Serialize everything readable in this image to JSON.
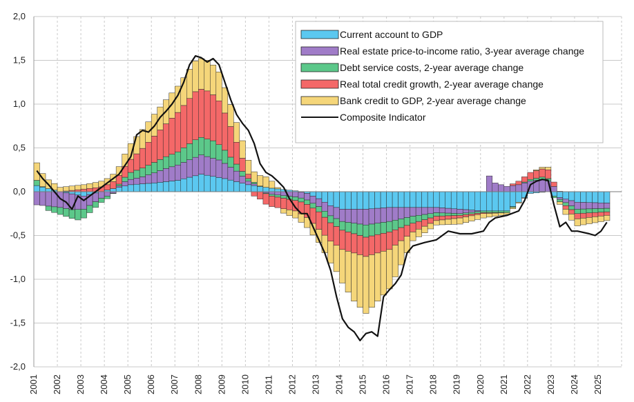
{
  "chart_data": {
    "type": "bar",
    "stacked": true,
    "x_start": 2001,
    "periods_per_year": 4,
    "x_ticks": [
      "2001",
      "2002",
      "2003",
      "2004",
      "2005",
      "2006",
      "2007",
      "2008",
      "2009",
      "2010",
      "2011",
      "2012",
      "2013",
      "2014",
      "2015",
      "2016",
      "2017",
      "2018",
      "2019",
      "2020",
      "2021",
      "2022",
      "2023",
      "2024",
      "2025"
    ],
    "y_ticks": [
      "2,0",
      "1,5",
      "1,0",
      "0,5",
      "0,0",
      "-0,5",
      "-1,0",
      "-1,5",
      "-2,0"
    ],
    "ylim": [
      -2.0,
      2.0
    ],
    "grid": true,
    "legend_position": "top-right",
    "colors": {
      "current_account": "#5bc8f0",
      "real_estate": "#a07cc8",
      "debt_service": "#5cc88a",
      "credit_growth": "#f46868",
      "bank_credit": "#f5d67a",
      "composite": "#111111",
      "grid": "#c8c8c8"
    },
    "series": [
      {
        "key": "current_account",
        "name": "Current account to GDP",
        "anchors": [
          [
            2001.0,
            0.07
          ],
          [
            2002.0,
            0.0
          ],
          [
            2003.0,
            -0.05
          ],
          [
            2004.0,
            0.02
          ],
          [
            2005.0,
            0.08
          ],
          [
            2006.0,
            0.1
          ],
          [
            2007.0,
            0.13
          ],
          [
            2008.0,
            0.2
          ],
          [
            2009.0,
            0.15
          ],
          [
            2010.0,
            0.08
          ],
          [
            2011.0,
            0.04
          ],
          [
            2012.0,
            0.01
          ],
          [
            2012.5,
            -0.02
          ],
          [
            2013.0,
            -0.08
          ],
          [
            2013.5,
            -0.16
          ],
          [
            2014.0,
            -0.2
          ],
          [
            2015.0,
            -0.2
          ],
          [
            2016.0,
            -0.18
          ],
          [
            2017.0,
            -0.18
          ],
          [
            2018.0,
            -0.18
          ],
          [
            2019.0,
            -0.2
          ],
          [
            2020.0,
            -0.22
          ],
          [
            2021.0,
            -0.22
          ],
          [
            2021.5,
            -0.12
          ],
          [
            2022.0,
            -0.02
          ],
          [
            2022.75,
            0.0
          ],
          [
            2023.0,
            -0.05
          ],
          [
            2024.0,
            -0.12
          ],
          [
            2025.25,
            -0.13
          ]
        ]
      },
      {
        "key": "real_estate",
        "name": "Real estate price-to-income ratio, 3-year average change",
        "anchors": [
          [
            2001.0,
            -0.15
          ],
          [
            2002.0,
            -0.18
          ],
          [
            2002.5,
            -0.18
          ],
          [
            2003.0,
            -0.15
          ],
          [
            2004.0,
            -0.05
          ],
          [
            2004.75,
            0.05
          ],
          [
            2005.5,
            0.08
          ],
          [
            2006.5,
            0.15
          ],
          [
            2007.5,
            0.2
          ],
          [
            2008.0,
            0.22
          ],
          [
            2008.75,
            0.2
          ],
          [
            2009.5,
            0.12
          ],
          [
            2010.0,
            0.04
          ],
          [
            2010.5,
            0.0
          ],
          [
            2011.0,
            -0.03
          ],
          [
            2012.0,
            -0.06
          ],
          [
            2013.0,
            -0.09
          ],
          [
            2014.0,
            -0.14
          ],
          [
            2015.0,
            -0.18
          ],
          [
            2016.0,
            -0.16
          ],
          [
            2017.0,
            -0.1
          ],
          [
            2018.0,
            -0.06
          ],
          [
            2019.0,
            -0.05
          ],
          [
            2020.0,
            0.0
          ],
          [
            2020.25,
            0.18
          ],
          [
            2020.5,
            0.1
          ],
          [
            2021.0,
            0.06
          ],
          [
            2021.5,
            0.08
          ],
          [
            2022.0,
            0.12
          ],
          [
            2022.5,
            0.14
          ],
          [
            2022.75,
            0.12
          ],
          [
            2023.0,
            0.06
          ],
          [
            2023.25,
            -0.02
          ],
          [
            2024.0,
            -0.08
          ],
          [
            2025.25,
            -0.06
          ]
        ]
      },
      {
        "key": "debt_service",
        "name": "Debt service costs, 2-year average change",
        "anchors": [
          [
            2001.0,
            0.06
          ],
          [
            2001.5,
            -0.05
          ],
          [
            2002.0,
            -0.08
          ],
          [
            2002.5,
            -0.1
          ],
          [
            2002.75,
            -0.12
          ],
          [
            2003.0,
            -0.1
          ],
          [
            2004.0,
            -0.03
          ],
          [
            2004.5,
            0.02
          ],
          [
            2005.0,
            0.08
          ],
          [
            2006.0,
            0.12
          ],
          [
            2007.0,
            0.15
          ],
          [
            2007.75,
            0.2
          ],
          [
            2008.5,
            0.2
          ],
          [
            2009.0,
            0.15
          ],
          [
            2009.5,
            0.08
          ],
          [
            2010.0,
            0.03
          ],
          [
            2011.0,
            -0.02
          ],
          [
            2012.0,
            -0.04
          ],
          [
            2013.0,
            -0.06
          ],
          [
            2014.0,
            -0.1
          ],
          [
            2015.0,
            -0.14
          ],
          [
            2016.0,
            -0.12
          ],
          [
            2017.0,
            -0.08
          ],
          [
            2018.0,
            -0.04
          ],
          [
            2019.0,
            -0.02
          ],
          [
            2020.0,
            -0.02
          ],
          [
            2021.0,
            -0.02
          ],
          [
            2022.0,
            0.02
          ],
          [
            2022.75,
            0.03
          ],
          [
            2023.0,
            -0.02
          ],
          [
            2024.0,
            -0.05
          ],
          [
            2025.25,
            -0.04
          ]
        ]
      },
      {
        "key": "credit_growth",
        "name": "Real total credit growth, 2-year average change",
        "anchors": [
          [
            2001.0,
            0.0
          ],
          [
            2002.0,
            0.0
          ],
          [
            2003.0,
            0.03
          ],
          [
            2004.0,
            0.06
          ],
          [
            2004.5,
            0.1
          ],
          [
            2005.0,
            0.15
          ],
          [
            2006.0,
            0.3
          ],
          [
            2007.0,
            0.45
          ],
          [
            2007.75,
            0.55
          ],
          [
            2008.25,
            0.55
          ],
          [
            2008.75,
            0.5
          ],
          [
            2009.25,
            0.35
          ],
          [
            2009.75,
            0.15
          ],
          [
            2010.25,
            -0.05
          ],
          [
            2010.75,
            -0.12
          ],
          [
            2011.5,
            -0.12
          ],
          [
            2012.0,
            -0.12
          ],
          [
            2012.5,
            -0.15
          ],
          [
            2013.0,
            -0.2
          ],
          [
            2014.0,
            -0.22
          ],
          [
            2015.0,
            -0.22
          ],
          [
            2016.0,
            -0.2
          ],
          [
            2017.0,
            -0.1
          ],
          [
            2018.0,
            -0.05
          ],
          [
            2019.0,
            -0.03
          ],
          [
            2020.0,
            -0.01
          ],
          [
            2021.0,
            0.0
          ],
          [
            2022.0,
            0.08
          ],
          [
            2022.75,
            0.1
          ],
          [
            2023.0,
            0.05
          ],
          [
            2023.5,
            -0.04
          ],
          [
            2024.0,
            -0.06
          ],
          [
            2025.25,
            -0.04
          ]
        ]
      },
      {
        "key": "bank_credit",
        "name": "Bank credit to GDP, 2-year average change",
        "anchors": [
          [
            2001.0,
            0.2
          ],
          [
            2001.5,
            0.1
          ],
          [
            2002.0,
            0.05
          ],
          [
            2003.0,
            0.05
          ],
          [
            2004.0,
            0.07
          ],
          [
            2004.5,
            0.1
          ],
          [
            2005.0,
            0.18
          ],
          [
            2006.0,
            0.25
          ],
          [
            2007.0,
            0.3
          ],
          [
            2007.75,
            0.35
          ],
          [
            2008.25,
            0.35
          ],
          [
            2008.75,
            0.33
          ],
          [
            2009.25,
            0.25
          ],
          [
            2009.75,
            0.2
          ],
          [
            2010.25,
            0.12
          ],
          [
            2010.75,
            0.12
          ],
          [
            2011.0,
            0.08
          ],
          [
            2011.5,
            -0.05
          ],
          [
            2012.0,
            -0.08
          ],
          [
            2013.0,
            -0.15
          ],
          [
            2013.75,
            -0.3
          ],
          [
            2014.5,
            -0.55
          ],
          [
            2015.0,
            -0.65
          ],
          [
            2015.5,
            -0.55
          ],
          [
            2016.0,
            -0.45
          ],
          [
            2017.0,
            -0.1
          ],
          [
            2018.0,
            -0.05
          ],
          [
            2019.0,
            -0.07
          ],
          [
            2020.0,
            -0.05
          ],
          [
            2021.0,
            -0.02
          ],
          [
            2022.0,
            0.0
          ],
          [
            2022.75,
            0.03
          ],
          [
            2023.0,
            0.0
          ],
          [
            2023.5,
            -0.06
          ],
          [
            2024.0,
            -0.08
          ],
          [
            2025.25,
            -0.06
          ]
        ]
      },
      {
        "key": "composite",
        "name": "Composite Indicator",
        "type": "line",
        "points": [
          [
            2001.0,
            0.24
          ],
          [
            2001.25,
            0.15
          ],
          [
            2001.5,
            0.08
          ],
          [
            2001.75,
            0.0
          ],
          [
            2002.0,
            -0.08
          ],
          [
            2002.25,
            -0.12
          ],
          [
            2002.5,
            -0.2
          ],
          [
            2002.75,
            -0.05
          ],
          [
            2003.0,
            -0.1
          ],
          [
            2003.25,
            -0.05
          ],
          [
            2003.5,
            0.0
          ],
          [
            2003.75,
            0.05
          ],
          [
            2004.0,
            0.1
          ],
          [
            2004.5,
            0.2
          ],
          [
            2005.0,
            0.4
          ],
          [
            2005.25,
            0.65
          ],
          [
            2005.5,
            0.7
          ],
          [
            2005.75,
            0.68
          ],
          [
            2006.0,
            0.75
          ],
          [
            2006.25,
            0.85
          ],
          [
            2006.5,
            0.92
          ],
          [
            2006.75,
            1.0
          ],
          [
            2007.0,
            1.1
          ],
          [
            2007.25,
            1.25
          ],
          [
            2007.5,
            1.45
          ],
          [
            2007.75,
            1.55
          ],
          [
            2008.0,
            1.53
          ],
          [
            2008.25,
            1.48
          ],
          [
            2008.5,
            1.52
          ],
          [
            2008.75,
            1.45
          ],
          [
            2009.0,
            1.25
          ],
          [
            2009.25,
            1.05
          ],
          [
            2009.5,
            0.88
          ],
          [
            2009.75,
            0.78
          ],
          [
            2010.0,
            0.7
          ],
          [
            2010.25,
            0.55
          ],
          [
            2010.5,
            0.32
          ],
          [
            2010.75,
            0.22
          ],
          [
            2011.0,
            0.18
          ],
          [
            2011.25,
            0.12
          ],
          [
            2011.5,
            0.05
          ],
          [
            2011.75,
            -0.08
          ],
          [
            2012.0,
            -0.18
          ],
          [
            2012.25,
            -0.25
          ],
          [
            2012.5,
            -0.25
          ],
          [
            2012.75,
            -0.4
          ],
          [
            2013.0,
            -0.55
          ],
          [
            2013.25,
            -0.7
          ],
          [
            2013.5,
            -0.9
          ],
          [
            2013.75,
            -1.2
          ],
          [
            2014.0,
            -1.45
          ],
          [
            2014.25,
            -1.55
          ],
          [
            2014.5,
            -1.6
          ],
          [
            2014.75,
            -1.7
          ],
          [
            2015.0,
            -1.62
          ],
          [
            2015.25,
            -1.6
          ],
          [
            2015.5,
            -1.65
          ],
          [
            2015.75,
            -1.2
          ],
          [
            2016.0,
            -1.12
          ],
          [
            2016.25,
            -1.05
          ],
          [
            2016.5,
            -0.95
          ],
          [
            2016.75,
            -0.7
          ],
          [
            2017.0,
            -0.62
          ],
          [
            2017.5,
            -0.58
          ],
          [
            2018.0,
            -0.55
          ],
          [
            2018.25,
            -0.5
          ],
          [
            2018.5,
            -0.45
          ],
          [
            2019.0,
            -0.48
          ],
          [
            2019.5,
            -0.48
          ],
          [
            2020.0,
            -0.45
          ],
          [
            2020.25,
            -0.35
          ],
          [
            2020.5,
            -0.3
          ],
          [
            2021.0,
            -0.27
          ],
          [
            2021.5,
            -0.22
          ],
          [
            2021.75,
            -0.1
          ],
          [
            2022.0,
            0.08
          ],
          [
            2022.25,
            0.12
          ],
          [
            2022.5,
            0.14
          ],
          [
            2022.75,
            0.13
          ],
          [
            2023.0,
            -0.15
          ],
          [
            2023.25,
            -0.4
          ],
          [
            2023.5,
            -0.35
          ],
          [
            2023.75,
            -0.45
          ],
          [
            2024.0,
            -0.45
          ],
          [
            2024.5,
            -0.48
          ],
          [
            2024.75,
            -0.5
          ],
          [
            2025.0,
            -0.45
          ],
          [
            2025.25,
            -0.35
          ]
        ]
      }
    ]
  }
}
